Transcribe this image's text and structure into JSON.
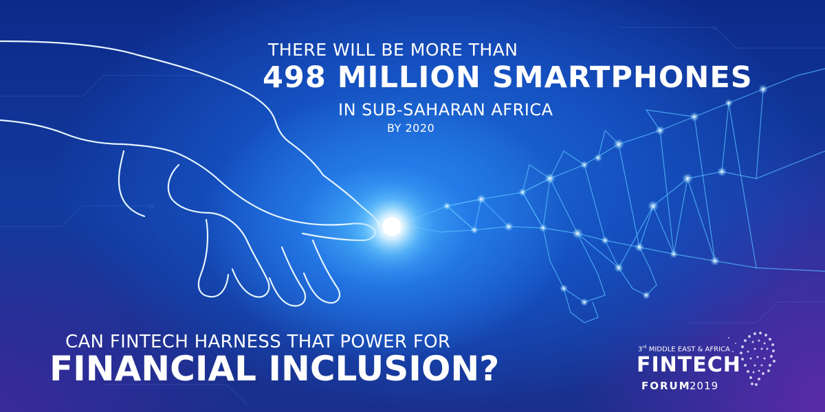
{
  "headline": {
    "line1": "THERE WILL BE MORE THAN",
    "line2": "498 MILLION SMARTPHONES",
    "line3": "IN SUB-SAHARAN AFRICA",
    "line4": "BY 2020"
  },
  "question": {
    "line1": "CAN FINTECH HARNESS THAT POWER FOR",
    "line2": "FINANCIAL INCLUSION?"
  },
  "logo": {
    "ordinal": "3",
    "ordinal_suffix": "rd",
    "top_text": "MIDDLE EAST & AFRICA",
    "main": "FINTECH",
    "forum": "FORUM",
    "year": "2019"
  },
  "colors": {
    "text": "#ffffff",
    "glow": "#bfe9ff",
    "line_art": "#dff3ff",
    "network": "#5cc6ff"
  },
  "icons": [
    "human-hand-outline",
    "digital-network-hand",
    "light-spark",
    "head-profile-logo-icon"
  ]
}
